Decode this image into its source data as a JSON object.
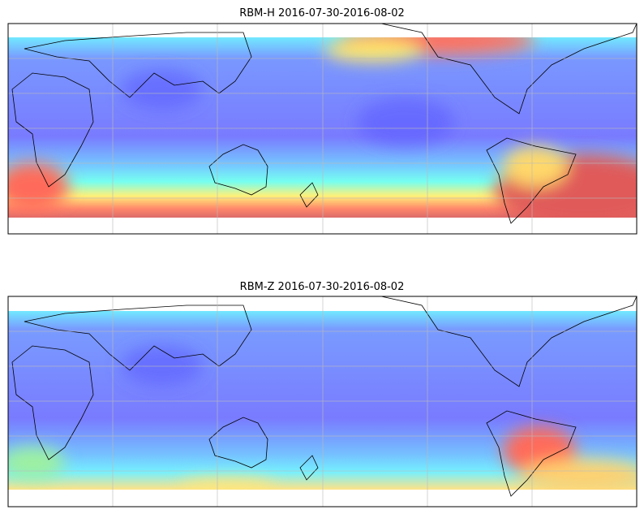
{
  "panels": [
    {
      "title": "RBM-H 2016-07-30-2016-08-02"
    },
    {
      "title": "RBM-Z 2016-07-30-2016-08-02"
    }
  ]
}
